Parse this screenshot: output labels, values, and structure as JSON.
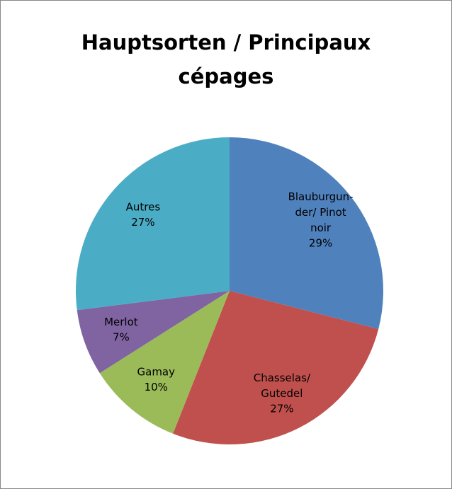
{
  "chart_data": {
    "type": "pie",
    "title": "Hauptsorten / Principaux cépages",
    "categories": [
      "Blauburgun-\nder/ Pinot\nnoir",
      "Chasselas/\nGutedel",
      "Gamay",
      "Merlot",
      "Autres"
    ],
    "values": [
      29,
      27,
      10,
      7,
      27
    ],
    "value_labels": [
      "29%",
      "27%",
      "10%",
      "7%",
      "27%"
    ],
    "colors": [
      "#4f81bd",
      "#c0504d",
      "#9bbb59",
      "#8064a2",
      "#4bacc6"
    ]
  }
}
